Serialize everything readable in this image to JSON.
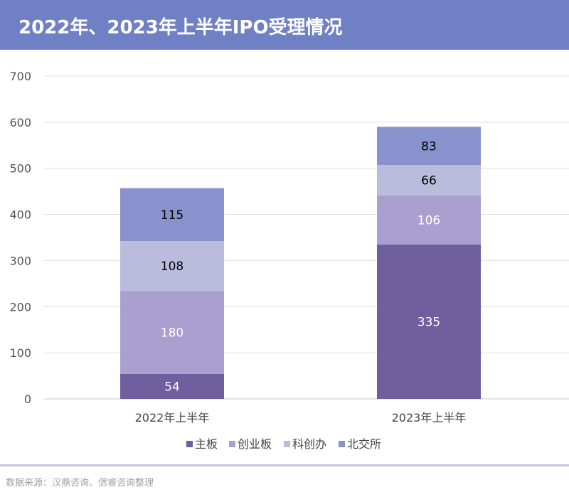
{
  "header": {
    "title": "2022年、2023年上半年IPO受理情况"
  },
  "chart_data": {
    "type": "bar",
    "stacked": true,
    "title": "2022年、2023年上半年IPO受理情况",
    "categories": [
      "2022年上半年",
      "2023年上半年"
    ],
    "series": [
      {
        "name": "主板",
        "values": [
          54,
          335
        ],
        "color": "#6f5f9e",
        "label_color": "#ffffff"
      },
      {
        "name": "创业板",
        "values": [
          180,
          106
        ],
        "color": "#aaa0cf",
        "label_color": "#ffffff"
      },
      {
        "name": "科创办",
        "values": [
          108,
          66
        ],
        "color": "#bbbcdc",
        "label_color": "#000000"
      },
      {
        "name": "北交所",
        "values": [
          115,
          83
        ],
        "color": "#8892cc",
        "label_color": "#000000"
      }
    ],
    "ylim": [
      0,
      700
    ],
    "yticks": [
      0,
      100,
      200,
      300,
      400,
      500,
      600,
      700
    ],
    "grid": true,
    "legend": "bottom"
  },
  "footer": {
    "source": "数据来源：汉鼎咨询。偲睿咨询整理"
  }
}
